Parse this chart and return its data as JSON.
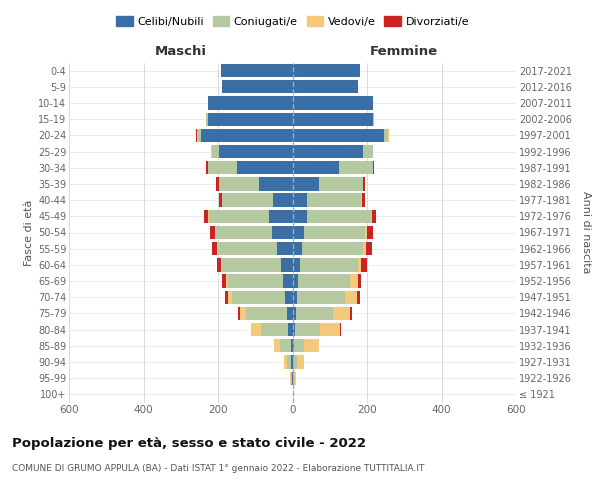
{
  "age_groups": [
    "100+",
    "95-99",
    "90-94",
    "85-89",
    "80-84",
    "75-79",
    "70-74",
    "65-69",
    "60-64",
    "55-59",
    "50-54",
    "45-49",
    "40-44",
    "35-39",
    "30-34",
    "25-29",
    "20-24",
    "15-19",
    "10-14",
    "5-9",
    "0-4"
  ],
  "birth_years": [
    "≤ 1921",
    "1922-1926",
    "1927-1931",
    "1932-1936",
    "1937-1941",
    "1942-1946",
    "1947-1951",
    "1952-1956",
    "1957-1961",
    "1962-1966",
    "1967-1971",
    "1972-1976",
    "1977-1981",
    "1982-1986",
    "1987-1991",
    "1992-1996",
    "1997-2001",
    "2002-2006",
    "2007-2011",
    "2012-2016",
    "2017-2021"
  ],
  "male_celibi": [
    0,
    2,
    4,
    5,
    12,
    16,
    20,
    25,
    30,
    42,
    55,
    62,
    52,
    90,
    148,
    198,
    245,
    228,
    228,
    188,
    192
  ],
  "male_coniugati": [
    0,
    3,
    12,
    28,
    72,
    108,
    142,
    148,
    158,
    158,
    152,
    162,
    138,
    108,
    80,
    18,
    10,
    5,
    0,
    0,
    0
  ],
  "male_vedovi": [
    0,
    2,
    8,
    18,
    28,
    18,
    10,
    5,
    3,
    3,
    2,
    2,
    0,
    0,
    0,
    2,
    2,
    0,
    0,
    0,
    0
  ],
  "male_divorziati": [
    0,
    0,
    0,
    0,
    0,
    3,
    8,
    10,
    12,
    12,
    12,
    12,
    8,
    8,
    3,
    2,
    2,
    0,
    0,
    0,
    0
  ],
  "female_nubili": [
    0,
    2,
    2,
    5,
    8,
    10,
    12,
    15,
    20,
    25,
    30,
    40,
    40,
    70,
    125,
    190,
    245,
    215,
    215,
    175,
    180
  ],
  "female_coniugate": [
    0,
    2,
    10,
    25,
    65,
    100,
    130,
    140,
    155,
    165,
    165,
    170,
    145,
    120,
    90,
    25,
    12,
    5,
    0,
    0,
    0
  ],
  "female_vedove": [
    1,
    5,
    20,
    42,
    55,
    45,
    30,
    20,
    10,
    8,
    5,
    3,
    2,
    0,
    0,
    0,
    2,
    0,
    0,
    0,
    0
  ],
  "female_divorziate": [
    0,
    0,
    0,
    0,
    2,
    4,
    8,
    10,
    14,
    15,
    15,
    12,
    8,
    5,
    3,
    2,
    0,
    0,
    0,
    0,
    0
  ],
  "colors_celibi": "#3a6ea5",
  "colors_coniugati": "#b5c9a0",
  "colors_vedovi": "#f5c97a",
  "colors_divorziati": "#cc2222",
  "xlim": 600,
  "xticks": [
    -600,
    -400,
    -200,
    0,
    200,
    400,
    600
  ],
  "title": "Popolazione per età, sesso e stato civile - 2022",
  "subtitle": "COMUNE DI GRUMO APPULA (BA) - Dati ISTAT 1° gennaio 2022 - Elaborazione TUTTITALIA.IT",
  "label_maschi": "Maschi",
  "label_femmine": "Femmine",
  "ylabel_left": "Fasce di età",
  "ylabel_right": "Anni di nascita",
  "legend_labels": [
    "Celibi/Nubili",
    "Coniugati/e",
    "Vedovi/e",
    "Divorziati/e"
  ]
}
